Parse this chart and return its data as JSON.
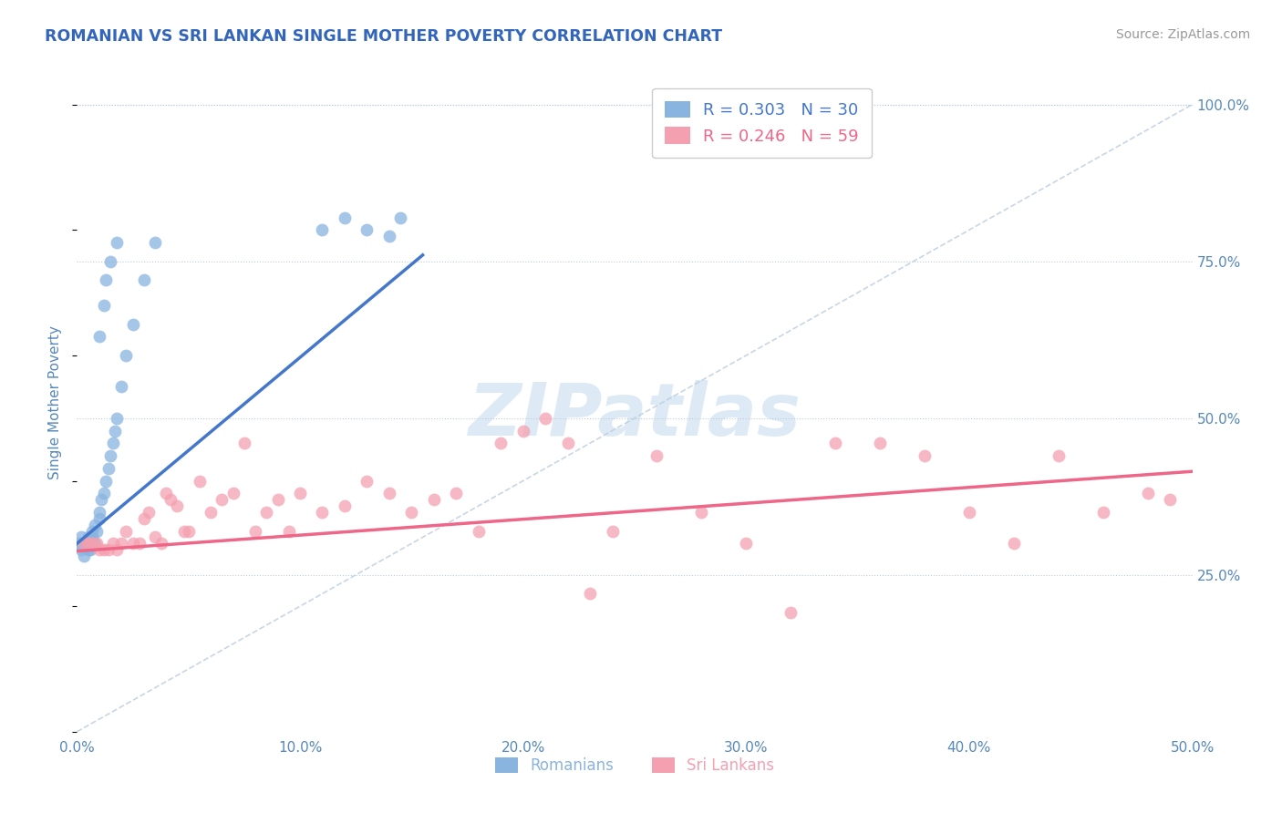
{
  "title": "ROMANIAN VS SRI LANKAN SINGLE MOTHER POVERTY CORRELATION CHART",
  "source": "Source: ZipAtlas.com",
  "xlim": [
    0.0,
    0.5
  ],
  "ylim": [
    0.0,
    1.05
  ],
  "ylabel": "Single Mother Poverty",
  "legend_romanian": "Romanians",
  "legend_sri": "Sri Lankans",
  "R_romanian": 0.303,
  "N_romanian": 30,
  "R_sri": 0.246,
  "N_sri": 59,
  "color_romanian": "#89B4E0",
  "color_sri": "#F4A0B0",
  "line_romanian": "#4477CC",
  "line_sri": "#EE6688",
  "watermark": "ZIPatlas",
  "watermark_color": "#DDEAF5",
  "title_color": "#3366BB",
  "tick_label_color": "#5588BB",
  "ylabel_color": "#5588BB",
  "ro_x": [
    0.001,
    0.002,
    0.002,
    0.003,
    0.003,
    0.004,
    0.005,
    0.005,
    0.006,
    0.006,
    0.007,
    0.007,
    0.008,
    0.008,
    0.009,
    0.01,
    0.01,
    0.011,
    0.012,
    0.013,
    0.014,
    0.015,
    0.016,
    0.017,
    0.018,
    0.02,
    0.022,
    0.025,
    0.03,
    0.035
  ],
  "ro_y": [
    0.3,
    0.29,
    0.31,
    0.3,
    0.28,
    0.3,
    0.29,
    0.31,
    0.3,
    0.29,
    0.32,
    0.31,
    0.3,
    0.33,
    0.32,
    0.34,
    0.35,
    0.37,
    0.38,
    0.4,
    0.42,
    0.44,
    0.46,
    0.48,
    0.5,
    0.55,
    0.6,
    0.65,
    0.72,
    0.78
  ],
  "ro_outlier_x": [
    0.01,
    0.012,
    0.015,
    0.018,
    0.022,
    0.11,
    0.12,
    0.13,
    0.14,
    0.145
  ],
  "ro_outlier_y": [
    0.63,
    0.68,
    0.72,
    0.75,
    0.78,
    0.8,
    0.82,
    0.8,
    0.79,
    0.82
  ],
  "sl_x": [
    0.003,
    0.005,
    0.007,
    0.009,
    0.01,
    0.012,
    0.014,
    0.016,
    0.018,
    0.02,
    0.022,
    0.025,
    0.028,
    0.03,
    0.032,
    0.035,
    0.038,
    0.04,
    0.042,
    0.045,
    0.048,
    0.05,
    0.055,
    0.06,
    0.065,
    0.07,
    0.075,
    0.08,
    0.085,
    0.09,
    0.095,
    0.1,
    0.11,
    0.12,
    0.13,
    0.14,
    0.15,
    0.16,
    0.17,
    0.18,
    0.19,
    0.2,
    0.21,
    0.22,
    0.23,
    0.24,
    0.26,
    0.28,
    0.3,
    0.32,
    0.34,
    0.36,
    0.38,
    0.4,
    0.42,
    0.44,
    0.46,
    0.48,
    0.49
  ],
  "sl_y": [
    0.3,
    0.3,
    0.3,
    0.3,
    0.29,
    0.29,
    0.29,
    0.3,
    0.29,
    0.3,
    0.32,
    0.3,
    0.3,
    0.34,
    0.35,
    0.31,
    0.3,
    0.38,
    0.37,
    0.36,
    0.32,
    0.32,
    0.4,
    0.35,
    0.37,
    0.38,
    0.46,
    0.32,
    0.35,
    0.37,
    0.32,
    0.38,
    0.35,
    0.36,
    0.4,
    0.38,
    0.35,
    0.37,
    0.38,
    0.32,
    0.46,
    0.48,
    0.5,
    0.46,
    0.22,
    0.32,
    0.44,
    0.35,
    0.3,
    0.19,
    0.46,
    0.46,
    0.44,
    0.35,
    0.3,
    0.44,
    0.35,
    0.38,
    0.37
  ],
  "ro_line_x": [
    0.0,
    0.155
  ],
  "ro_line_y": [
    0.3,
    0.76
  ],
  "sl_line_x": [
    0.0,
    0.5
  ],
  "sl_line_y": [
    0.288,
    0.415
  ]
}
